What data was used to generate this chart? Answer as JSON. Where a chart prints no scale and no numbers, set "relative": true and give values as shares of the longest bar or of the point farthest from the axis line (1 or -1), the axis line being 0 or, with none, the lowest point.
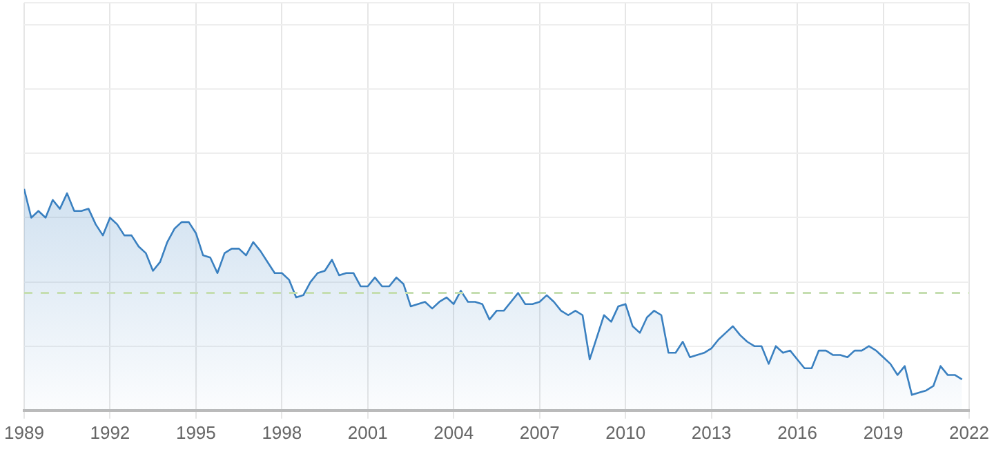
{
  "chart_data": {
    "type": "area",
    "relative": true,
    "grid": true,
    "line_style": "solid",
    "xlim": [
      1989,
      2022
    ],
    "xticks": [
      1989,
      1992,
      1995,
      1998,
      2001,
      2004,
      2007,
      2010,
      2013,
      2016,
      2019,
      2022
    ],
    "ref_lines": [
      {
        "axis": "y",
        "value": 0.53,
        "color": "#c5deb0",
        "line_style": "dashed"
      }
    ],
    "series": [
      {
        "color": "#3a80c0",
        "x": [
          1989,
          1989.25,
          1989.5,
          1989.75,
          1990,
          1990.25,
          1990.5,
          1990.75,
          1991,
          1991.25,
          1991.5,
          1991.75,
          1992,
          1992.25,
          1992.5,
          1992.75,
          1993,
          1993.25,
          1993.5,
          1993.75,
          1994,
          1994.25,
          1994.5,
          1994.75,
          1995,
          1995.25,
          1995.5,
          1995.75,
          1996,
          1996.25,
          1996.5,
          1996.75,
          1997,
          1997.25,
          1997.5,
          1997.75,
          1998,
          1998.25,
          1998.5,
          1998.75,
          1999,
          1999.25,
          1999.5,
          1999.75,
          2000,
          2000.25,
          2000.5,
          2000.75,
          2001,
          2001.25,
          2001.5,
          2001.75,
          2002,
          2002.25,
          2002.5,
          2002.75,
          2003,
          2003.25,
          2003.5,
          2003.75,
          2004,
          2004.25,
          2004.5,
          2004.75,
          2005,
          2005.25,
          2005.5,
          2005.75,
          2006,
          2006.25,
          2006.5,
          2006.75,
          2007,
          2007.25,
          2007.5,
          2007.75,
          2008,
          2008.25,
          2008.5,
          2008.75,
          2009,
          2009.25,
          2009.5,
          2009.75,
          2010,
          2010.25,
          2010.5,
          2010.75,
          2011,
          2011.25,
          2011.5,
          2011.75,
          2012,
          2012.25,
          2012.5,
          2012.75,
          2013,
          2013.25,
          2013.5,
          2013.75,
          2014,
          2014.25,
          2014.5,
          2014.75,
          2015,
          2015.25,
          2015.5,
          2015.75,
          2016,
          2016.25,
          2016.5,
          2016.75,
          2017,
          2017.25,
          2017.5,
          2017.75,
          2018,
          2018.25,
          2018.5,
          2018.75,
          2019,
          2019.25,
          2019.5,
          2019.75,
          2020,
          2020.25,
          2020.5,
          2020.75,
          2021,
          2021.25,
          2021.5,
          2021.75
        ],
        "values": [
          1.0,
          0.87,
          0.9,
          0.87,
          0.95,
          0.91,
          0.98,
          0.9,
          0.9,
          0.91,
          0.84,
          0.79,
          0.87,
          0.84,
          0.79,
          0.79,
          0.74,
          0.71,
          0.63,
          0.67,
          0.76,
          0.82,
          0.85,
          0.85,
          0.8,
          0.7,
          0.69,
          0.62,
          0.71,
          0.73,
          0.73,
          0.7,
          0.76,
          0.72,
          0.67,
          0.62,
          0.62,
          0.59,
          0.51,
          0.52,
          0.58,
          0.62,
          0.63,
          0.68,
          0.61,
          0.62,
          0.62,
          0.56,
          0.56,
          0.6,
          0.56,
          0.56,
          0.6,
          0.57,
          0.47,
          0.48,
          0.49,
          0.46,
          0.49,
          0.51,
          0.48,
          0.54,
          0.49,
          0.49,
          0.48,
          0.41,
          0.45,
          0.45,
          0.49,
          0.53,
          0.48,
          0.48,
          0.49,
          0.52,
          0.49,
          0.45,
          0.43,
          0.45,
          0.43,
          0.23,
          0.33,
          0.43,
          0.4,
          0.47,
          0.48,
          0.38,
          0.35,
          0.42,
          0.45,
          0.43,
          0.26,
          0.26,
          0.31,
          0.24,
          0.25,
          0.26,
          0.28,
          0.32,
          0.35,
          0.38,
          0.34,
          0.31,
          0.29,
          0.29,
          0.21,
          0.29,
          0.26,
          0.27,
          0.23,
          0.19,
          0.19,
          0.27,
          0.27,
          0.25,
          0.25,
          0.24,
          0.27,
          0.27,
          0.29,
          0.27,
          0.24,
          0.21,
          0.16,
          0.2,
          0.07,
          0.08,
          0.09,
          0.11,
          0.2,
          0.16,
          0.16,
          0.14
        ]
      }
    ]
  }
}
